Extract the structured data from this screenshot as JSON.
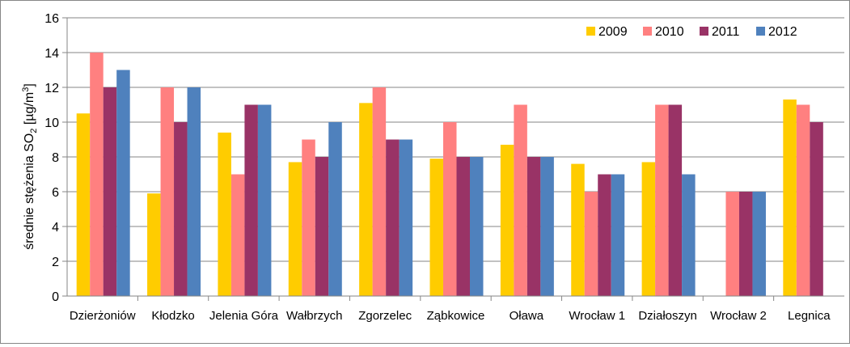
{
  "chart_data": {
    "type": "bar",
    "categories": [
      "Dzierżoniów",
      "Kłodzko",
      "Jelenia Góra",
      "Wałbrzych",
      "Zgorzelec",
      "Ząbkowice",
      "Oława",
      "Wrocław 1",
      "Działoszyn",
      "Wrocław 2",
      "Legnica"
    ],
    "series": [
      {
        "name": "2009",
        "color": "#FFCC00",
        "values": [
          10.5,
          5.9,
          9.4,
          7.7,
          11.1,
          7.9,
          8.7,
          7.6,
          7.7,
          null,
          11.3
        ]
      },
      {
        "name": "2010",
        "color": "#FF8080",
        "values": [
          14,
          12,
          7,
          9,
          12,
          10,
          11,
          6,
          11,
          6,
          11
        ]
      },
      {
        "name": "2011",
        "color": "#993366",
        "values": [
          12,
          10,
          11,
          8,
          9,
          8,
          8,
          7,
          11,
          6,
          10
        ]
      },
      {
        "name": "2012",
        "color": "#4F81BD",
        "values": [
          13,
          12,
          11,
          10,
          9,
          8,
          8,
          7,
          7,
          6,
          null
        ]
      }
    ],
    "ylabel": {
      "prefix": "średnie stężenia  SO",
      "sub": "2",
      "unit_open": " [µg/m",
      "sup": "3",
      "unit_close": "]"
    },
    "ylim": [
      0,
      16
    ],
    "yticks": [
      "0",
      "2",
      "4",
      "6",
      "8",
      "10",
      "12",
      "14",
      "16"
    ],
    "grid": true,
    "legend_position": "top-right"
  }
}
